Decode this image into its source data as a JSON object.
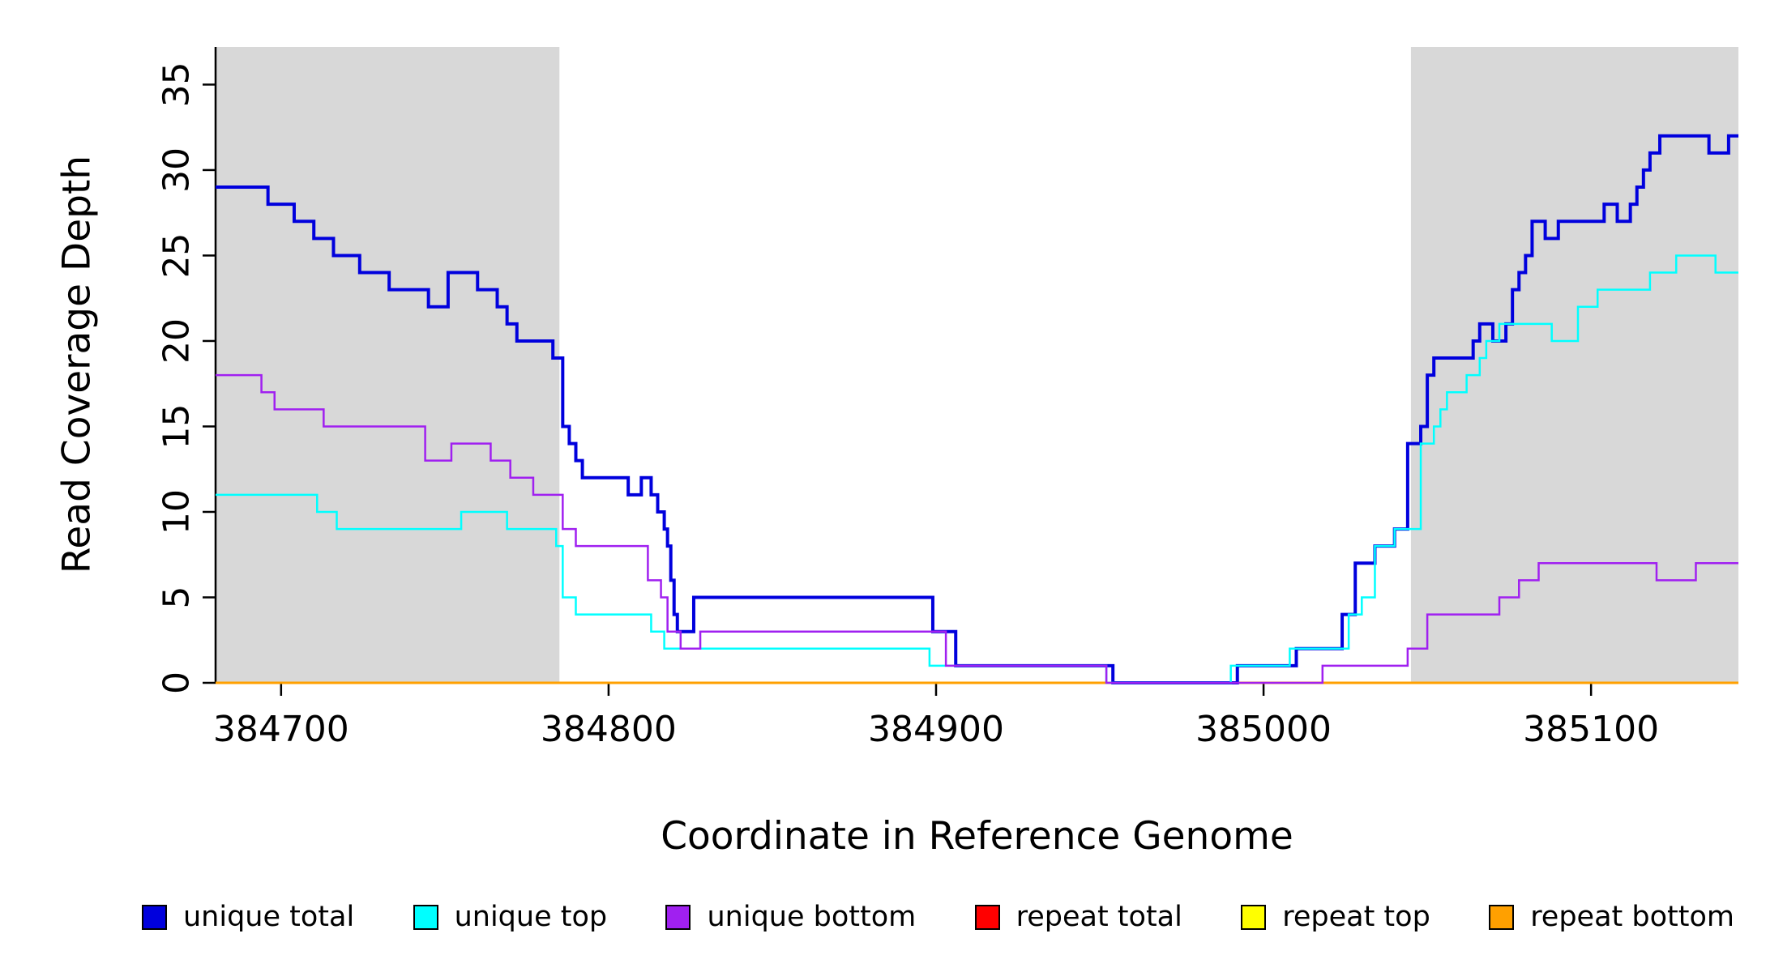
{
  "chart_data": {
    "type": "line",
    "step": true,
    "title": "",
    "xlabel": "Coordinate in Reference Genome",
    "ylabel": "Read Coverage Depth",
    "xlim": [
      384680,
      385145
    ],
    "ylim": [
      0,
      37.2
    ],
    "xticks": [
      384700,
      384800,
      384900,
      385000,
      385100
    ],
    "yticks": [
      0,
      5,
      10,
      15,
      20,
      25,
      30,
      35
    ],
    "grid": false,
    "legend_position": "bottom",
    "shaded_regions": [
      {
        "from": 384680,
        "to": 384785,
        "color": "#d8d8d8"
      },
      {
        "from": 385045,
        "to": 385145,
        "color": "#d8d8d8"
      }
    ],
    "series": [
      {
        "name": "unique total",
        "color": "#0000dd",
        "width": 4,
        "points": [
          [
            384680,
            29
          ],
          [
            384696,
            28
          ],
          [
            384704,
            27
          ],
          [
            384710,
            26
          ],
          [
            384716,
            25
          ],
          [
            384724,
            24
          ],
          [
            384733,
            23
          ],
          [
            384745,
            22
          ],
          [
            384751,
            24
          ],
          [
            384760,
            23
          ],
          [
            384766,
            22
          ],
          [
            384769,
            21
          ],
          [
            384772,
            20
          ],
          [
            384783,
            19
          ],
          [
            384786,
            15
          ],
          [
            384788,
            14
          ],
          [
            384790,
            13
          ],
          [
            384792,
            12
          ],
          [
            384806,
            11
          ],
          [
            384810,
            12
          ],
          [
            384813,
            11
          ],
          [
            384815,
            10
          ],
          [
            384817,
            9
          ],
          [
            384818,
            8
          ],
          [
            384819,
            6
          ],
          [
            384820,
            4
          ],
          [
            384821,
            3
          ],
          [
            384826,
            5
          ],
          [
            384899,
            3
          ],
          [
            384906,
            1
          ],
          [
            384954,
            0
          ],
          [
            384992,
            1
          ],
          [
            385010,
            2
          ],
          [
            385024,
            4
          ],
          [
            385028,
            7
          ],
          [
            385034,
            8
          ],
          [
            385040,
            9
          ],
          [
            385044,
            14
          ],
          [
            385048,
            15
          ],
          [
            385050,
            18
          ],
          [
            385052,
            19
          ],
          [
            385064,
            20
          ],
          [
            385066,
            21
          ],
          [
            385070,
            20
          ],
          [
            385074,
            21
          ],
          [
            385076,
            23
          ],
          [
            385078,
            24
          ],
          [
            385080,
            25
          ],
          [
            385082,
            27
          ],
          [
            385086,
            26
          ],
          [
            385090,
            27
          ],
          [
            385104,
            28
          ],
          [
            385108,
            27
          ],
          [
            385112,
            28
          ],
          [
            385114,
            29
          ],
          [
            385116,
            30
          ],
          [
            385118,
            31
          ],
          [
            385121,
            32
          ],
          [
            385136,
            31
          ],
          [
            385142,
            32
          ]
        ]
      },
      {
        "name": "unique top",
        "color": "#00ffff",
        "width": 2.5,
        "points": [
          [
            384680,
            11
          ],
          [
            384711,
            10
          ],
          [
            384717,
            9
          ],
          [
            384755,
            10
          ],
          [
            384769,
            9
          ],
          [
            384784,
            8
          ],
          [
            384786,
            5
          ],
          [
            384790,
            4
          ],
          [
            384813,
            3
          ],
          [
            384817,
            2
          ],
          [
            384898,
            1
          ],
          [
            384952,
            0
          ],
          [
            384990,
            1
          ],
          [
            385008,
            2
          ],
          [
            385026,
            4
          ],
          [
            385030,
            5
          ],
          [
            385034,
            8
          ],
          [
            385040,
            9
          ],
          [
            385048,
            14
          ],
          [
            385052,
            15
          ],
          [
            385054,
            16
          ],
          [
            385056,
            17
          ],
          [
            385062,
            18
          ],
          [
            385066,
            19
          ],
          [
            385068,
            20
          ],
          [
            385072,
            21
          ],
          [
            385088,
            20
          ],
          [
            385096,
            22
          ],
          [
            385102,
            23
          ],
          [
            385118,
            24
          ],
          [
            385126,
            25
          ],
          [
            385138,
            24
          ]
        ]
      },
      {
        "name": "unique bottom",
        "color": "#a020f0",
        "width": 2.5,
        "points": [
          [
            384680,
            18
          ],
          [
            384694,
            17
          ],
          [
            384698,
            16
          ],
          [
            384713,
            15
          ],
          [
            384744,
            13
          ],
          [
            384752,
            14
          ],
          [
            384764,
            13
          ],
          [
            384770,
            12
          ],
          [
            384777,
            11
          ],
          [
            384786,
            9
          ],
          [
            384790,
            8
          ],
          [
            384812,
            6
          ],
          [
            384816,
            5
          ],
          [
            384818,
            3
          ],
          [
            384822,
            2
          ],
          [
            384828,
            3
          ],
          [
            384903,
            1
          ],
          [
            384952,
            0
          ],
          [
            385018,
            1
          ],
          [
            385044,
            2
          ],
          [
            385050,
            4
          ],
          [
            385072,
            5
          ],
          [
            385078,
            6
          ],
          [
            385084,
            7
          ],
          [
            385120,
            6
          ],
          [
            385132,
            7
          ]
        ]
      },
      {
        "name": "repeat total",
        "color": "#ff0000",
        "width": 2.5,
        "points": [
          [
            384680,
            0
          ]
        ]
      },
      {
        "name": "repeat top",
        "color": "#ffff00",
        "width": 2.5,
        "points": [
          [
            384680,
            0
          ]
        ]
      },
      {
        "name": "repeat bottom",
        "color": "#ffa000",
        "width": 3,
        "points": [
          [
            384680,
            0
          ]
        ]
      }
    ],
    "draw_order": [
      3,
      4,
      5,
      0,
      1,
      2
    ],
    "legend": [
      {
        "label": "unique total",
        "color": "#0000dd"
      },
      {
        "label": "unique top",
        "color": "#00ffff"
      },
      {
        "label": "unique bottom",
        "color": "#a020f0"
      },
      {
        "label": "repeat total",
        "color": "#ff0000"
      },
      {
        "label": "repeat top",
        "color": "#ffff00"
      },
      {
        "label": "repeat bottom",
        "color": "#ffa000"
      }
    ]
  }
}
